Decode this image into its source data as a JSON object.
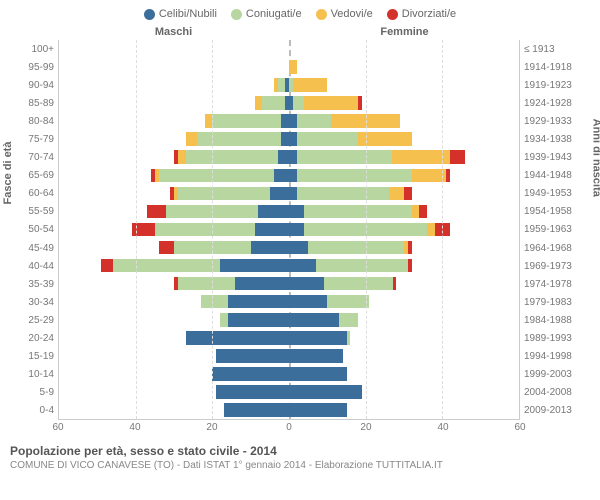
{
  "title": "Popolazione per età, sesso e stato civile - 2014",
  "subtitle": "COMUNE DI VICO CANAVESE (TO) - Dati ISTAT 1° gennaio 2014 - Elaborazione TUTTITALIA.IT",
  "legend": [
    {
      "label": "Celibi/Nubili",
      "color": "#3b6e9b"
    },
    {
      "label": "Coniugati/e",
      "color": "#b8d6a0"
    },
    {
      "label": "Vedovi/e",
      "color": "#f6c04e"
    },
    {
      "label": "Divorziati/e",
      "color": "#d3312a"
    }
  ],
  "header_male": "Maschi",
  "header_female": "Femmine",
  "y_label_left": "Fasce di età",
  "y_label_right": "Anni di nascita",
  "x_max": 60,
  "x_ticks": [
    60,
    40,
    20,
    0,
    20,
    40,
    60
  ],
  "colors": {
    "single": "#3b6e9b",
    "married": "#b8d6a0",
    "widowed": "#f6c04e",
    "divorced": "#d3312a",
    "grid": "#dddddd",
    "center": "#bbbbbb",
    "bg": "#ffffff"
  },
  "rows": [
    {
      "age": "100+",
      "birth": "≤ 1913",
      "m": {
        "s": 0,
        "m": 0,
        "w": 0,
        "d": 0
      },
      "f": {
        "s": 0,
        "m": 0,
        "w": 0,
        "d": 0
      }
    },
    {
      "age": "95-99",
      "birth": "1914-1918",
      "m": {
        "s": 0,
        "m": 0,
        "w": 0,
        "d": 0
      },
      "f": {
        "s": 0,
        "m": 0,
        "w": 2,
        "d": 0
      }
    },
    {
      "age": "90-94",
      "birth": "1919-1923",
      "m": {
        "s": 1,
        "m": 2,
        "w": 1,
        "d": 0
      },
      "f": {
        "s": 0,
        "m": 1,
        "w": 9,
        "d": 0
      }
    },
    {
      "age": "85-89",
      "birth": "1924-1928",
      "m": {
        "s": 1,
        "m": 6,
        "w": 2,
        "d": 0
      },
      "f": {
        "s": 1,
        "m": 3,
        "w": 14,
        "d": 1
      }
    },
    {
      "age": "80-84",
      "birth": "1929-1933",
      "m": {
        "s": 2,
        "m": 18,
        "w": 2,
        "d": 0
      },
      "f": {
        "s": 2,
        "m": 9,
        "w": 18,
        "d": 0
      }
    },
    {
      "age": "75-79",
      "birth": "1934-1938",
      "m": {
        "s": 2,
        "m": 22,
        "w": 3,
        "d": 0
      },
      "f": {
        "s": 2,
        "m": 16,
        "w": 14,
        "d": 0
      }
    },
    {
      "age": "70-74",
      "birth": "1939-1943",
      "m": {
        "s": 3,
        "m": 24,
        "w": 2,
        "d": 1
      },
      "f": {
        "s": 2,
        "m": 25,
        "w": 15,
        "d": 4
      }
    },
    {
      "age": "65-69",
      "birth": "1944-1948",
      "m": {
        "s": 4,
        "m": 30,
        "w": 1,
        "d": 1
      },
      "f": {
        "s": 2,
        "m": 30,
        "w": 9,
        "d": 1
      }
    },
    {
      "age": "60-64",
      "birth": "1949-1953",
      "m": {
        "s": 5,
        "m": 24,
        "w": 1,
        "d": 1
      },
      "f": {
        "s": 2,
        "m": 24,
        "w": 4,
        "d": 2
      }
    },
    {
      "age": "55-59",
      "birth": "1954-1958",
      "m": {
        "s": 8,
        "m": 24,
        "w": 0,
        "d": 5
      },
      "f": {
        "s": 4,
        "m": 28,
        "w": 2,
        "d": 2
      }
    },
    {
      "age": "50-54",
      "birth": "1959-1963",
      "m": {
        "s": 9,
        "m": 26,
        "w": 0,
        "d": 6
      },
      "f": {
        "s": 4,
        "m": 32,
        "w": 2,
        "d": 4
      }
    },
    {
      "age": "45-49",
      "birth": "1964-1968",
      "m": {
        "s": 10,
        "m": 20,
        "w": 0,
        "d": 4
      },
      "f": {
        "s": 5,
        "m": 25,
        "w": 1,
        "d": 1
      }
    },
    {
      "age": "40-44",
      "birth": "1969-1973",
      "m": {
        "s": 18,
        "m": 28,
        "w": 0,
        "d": 3
      },
      "f": {
        "s": 7,
        "m": 24,
        "w": 0,
        "d": 1
      }
    },
    {
      "age": "35-39",
      "birth": "1974-1978",
      "m": {
        "s": 14,
        "m": 15,
        "w": 0,
        "d": 1
      },
      "f": {
        "s": 9,
        "m": 18,
        "w": 0,
        "d": 1
      }
    },
    {
      "age": "30-34",
      "birth": "1979-1983",
      "m": {
        "s": 16,
        "m": 7,
        "w": 0,
        "d": 0
      },
      "f": {
        "s": 10,
        "m": 11,
        "w": 0,
        "d": 0
      }
    },
    {
      "age": "25-29",
      "birth": "1984-1988",
      "m": {
        "s": 16,
        "m": 2,
        "w": 0,
        "d": 0
      },
      "f": {
        "s": 13,
        "m": 5,
        "w": 0,
        "d": 0
      }
    },
    {
      "age": "20-24",
      "birth": "1989-1993",
      "m": {
        "s": 27,
        "m": 0,
        "w": 0,
        "d": 0
      },
      "f": {
        "s": 15,
        "m": 1,
        "w": 0,
        "d": 0
      }
    },
    {
      "age": "15-19",
      "birth": "1994-1998",
      "m": {
        "s": 19,
        "m": 0,
        "w": 0,
        "d": 0
      },
      "f": {
        "s": 14,
        "m": 0,
        "w": 0,
        "d": 0
      }
    },
    {
      "age": "10-14",
      "birth": "1999-2003",
      "m": {
        "s": 20,
        "m": 0,
        "w": 0,
        "d": 0
      },
      "f": {
        "s": 15,
        "m": 0,
        "w": 0,
        "d": 0
      }
    },
    {
      "age": "5-9",
      "birth": "2004-2008",
      "m": {
        "s": 19,
        "m": 0,
        "w": 0,
        "d": 0
      },
      "f": {
        "s": 19,
        "m": 0,
        "w": 0,
        "d": 0
      }
    },
    {
      "age": "0-4",
      "birth": "2009-2013",
      "m": {
        "s": 17,
        "m": 0,
        "w": 0,
        "d": 0
      },
      "f": {
        "s": 15,
        "m": 0,
        "w": 0,
        "d": 0
      }
    }
  ]
}
